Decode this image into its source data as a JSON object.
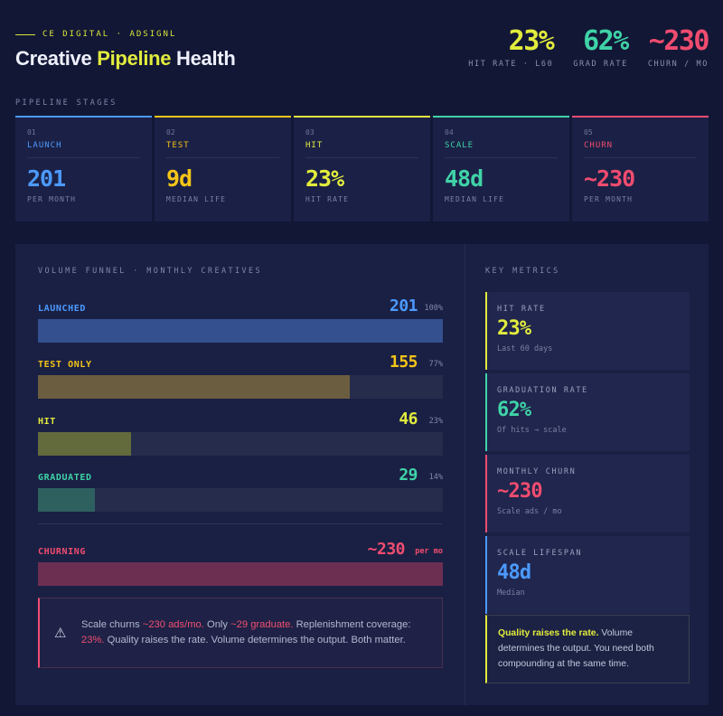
{
  "header": {
    "eyebrow": "CE DIGITAL · ADSIGNL",
    "title_pre": "Creative",
    "title_accent": "Pipeline",
    "title_post": "Health",
    "kpis": [
      {
        "value": "23%",
        "label": "HIT RATE · L60",
        "color": "#e2ec3c"
      },
      {
        "value": "62%",
        "label": "GRAD RATE",
        "color": "#3fd3a7"
      },
      {
        "value": "~230",
        "label": "CHURN / MO",
        "color": "#f04c6f"
      }
    ]
  },
  "stages_section": {
    "label": "PIPELINE STAGES",
    "stages": [
      {
        "idx": "01",
        "name": "LAUNCH",
        "value": "201",
        "sub": "PER MONTH",
        "color": "#4c9aff"
      },
      {
        "idx": "02",
        "name": "TEST",
        "value": "9d",
        "sub": "MEDIAN LIFE",
        "color": "#f5c518"
      },
      {
        "idx": "03",
        "name": "HIT",
        "value": "23%",
        "sub": "HIT RATE",
        "color": "#e2ec3c"
      },
      {
        "idx": "04",
        "name": "SCALE",
        "value": "48d",
        "sub": "MEDIAN LIFE",
        "color": "#3fd3a7"
      },
      {
        "idx": "05",
        "name": "CHURN",
        "value": "~230",
        "sub": "PER MONTH",
        "color": "#f04c6f"
      }
    ]
  },
  "funnel": {
    "title": "VOLUME FUNNEL · MONTHLY CREATIVES",
    "rows": [
      {
        "name": "LAUNCHED",
        "value": "201",
        "pct": "100%",
        "fraction": 1.0,
        "color": "#4c9aff",
        "fill": "#34508e"
      },
      {
        "name": "TEST ONLY",
        "value": "155",
        "pct": "77%",
        "fraction": 0.77,
        "color": "#f5c518",
        "fill": "#6b5e40"
      },
      {
        "name": "HIT",
        "value": "46",
        "pct": "23%",
        "fraction": 0.23,
        "color": "#e2ec3c",
        "fill": "#636a3c"
      },
      {
        "name": "GRADUATED",
        "value": "29",
        "pct": "14%",
        "fraction": 0.14,
        "color": "#3fd3a7",
        "fill": "#2e6060"
      }
    ],
    "churn": {
      "name": "CHURNING",
      "value": "~230",
      "unit": "per mo",
      "fraction": 1.0,
      "color": "#f04c6f",
      "fill": "#6c2f52"
    },
    "alert": {
      "icon": "warning-icon",
      "t1": "Scale churns ",
      "h1": "~230 ads/mo.",
      "t2": " Only ",
      "h2": "~29 graduate.",
      "t3": " Replenishment coverage: ",
      "h3": "23%.",
      "t4": " Quality raises the rate. Volume determines the output. Both matter."
    }
  },
  "metrics": {
    "title": "KEY METRICS",
    "cards": [
      {
        "label": "HIT RATE",
        "value": "23%",
        "sub": "Last 60 days",
        "color": "#e2ec3c"
      },
      {
        "label": "GRADUATION RATE",
        "value": "62%",
        "sub": "Of hits → scale",
        "color": "#3fd3a7"
      },
      {
        "label": "MONTHLY CHURN",
        "value": "~230",
        "sub": "Scale ads / mo",
        "color": "#f04c6f"
      },
      {
        "label": "SCALE LIFESPAN",
        "value": "48d",
        "sub": "Median",
        "color": "#4c9aff"
      }
    ],
    "note": {
      "strong": "Quality raises the rate.",
      "rest": " Volume determines the output. You need both compounding at the same time."
    }
  }
}
